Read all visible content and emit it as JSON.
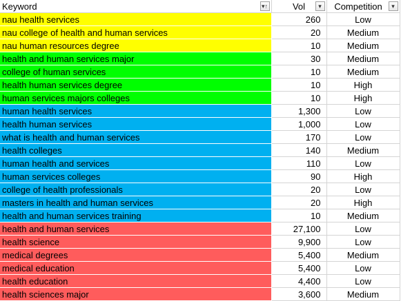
{
  "headers": {
    "keyword": "Keyword",
    "vol": "Vol",
    "competition": "Competition",
    "keyword_filter_icon": "filter-sort-icon",
    "vol_filter_icon": "dropdown-icon",
    "competition_filter_icon": "dropdown-icon"
  },
  "colors": {
    "yellow": "#ffff00",
    "green": "#00ff00",
    "blue": "#00b0f0",
    "red": "#ff5c5c"
  },
  "rows": [
    {
      "keyword": "nau health services",
      "vol": "260",
      "competition": "Low",
      "group": "yellow"
    },
    {
      "keyword": "nau college of health and human services",
      "vol": "20",
      "competition": "Medium",
      "group": "yellow"
    },
    {
      "keyword": "nau human resources degree",
      "vol": "10",
      "competition": "Medium",
      "group": "yellow"
    },
    {
      "keyword": "health and human services major",
      "vol": "30",
      "competition": "Medium",
      "group": "green"
    },
    {
      "keyword": "college of human services",
      "vol": "10",
      "competition": "Medium",
      "group": "green"
    },
    {
      "keyword": "health human services degree",
      "vol": "10",
      "competition": "High",
      "group": "green"
    },
    {
      "keyword": "human services majors colleges",
      "vol": "10",
      "competition": "High",
      "group": "green"
    },
    {
      "keyword": "human health services",
      "vol": "1,300",
      "competition": "Low",
      "group": "blue"
    },
    {
      "keyword": "health human services",
      "vol": "1,000",
      "competition": "Low",
      "group": "blue"
    },
    {
      "keyword": "what is health and human services",
      "vol": "170",
      "competition": "Low",
      "group": "blue"
    },
    {
      "keyword": "health colleges",
      "vol": "140",
      "competition": "Medium",
      "group": "blue"
    },
    {
      "keyword": "human health and services",
      "vol": "110",
      "competition": "Low",
      "group": "blue"
    },
    {
      "keyword": "human services colleges",
      "vol": "90",
      "competition": "High",
      "group": "blue"
    },
    {
      "keyword": "college of health professionals",
      "vol": "20",
      "competition": "Low",
      "group": "blue"
    },
    {
      "keyword": "masters in health and human services",
      "vol": "20",
      "competition": "High",
      "group": "blue"
    },
    {
      "keyword": "health and human services training",
      "vol": "10",
      "competition": "Medium",
      "group": "blue"
    },
    {
      "keyword": "health and human services",
      "vol": "27,100",
      "competition": "Low",
      "group": "red"
    },
    {
      "keyword": "health science",
      "vol": "9,900",
      "competition": "Low",
      "group": "red"
    },
    {
      "keyword": "medical degrees",
      "vol": "5,400",
      "competition": "Medium",
      "group": "red"
    },
    {
      "keyword": "medical education",
      "vol": "5,400",
      "competition": "Low",
      "group": "red"
    },
    {
      "keyword": "health education",
      "vol": "4,400",
      "competition": "Low",
      "group": "red"
    },
    {
      "keyword": "health sciences major",
      "vol": "3,600",
      "competition": "Medium",
      "group": "red"
    }
  ]
}
